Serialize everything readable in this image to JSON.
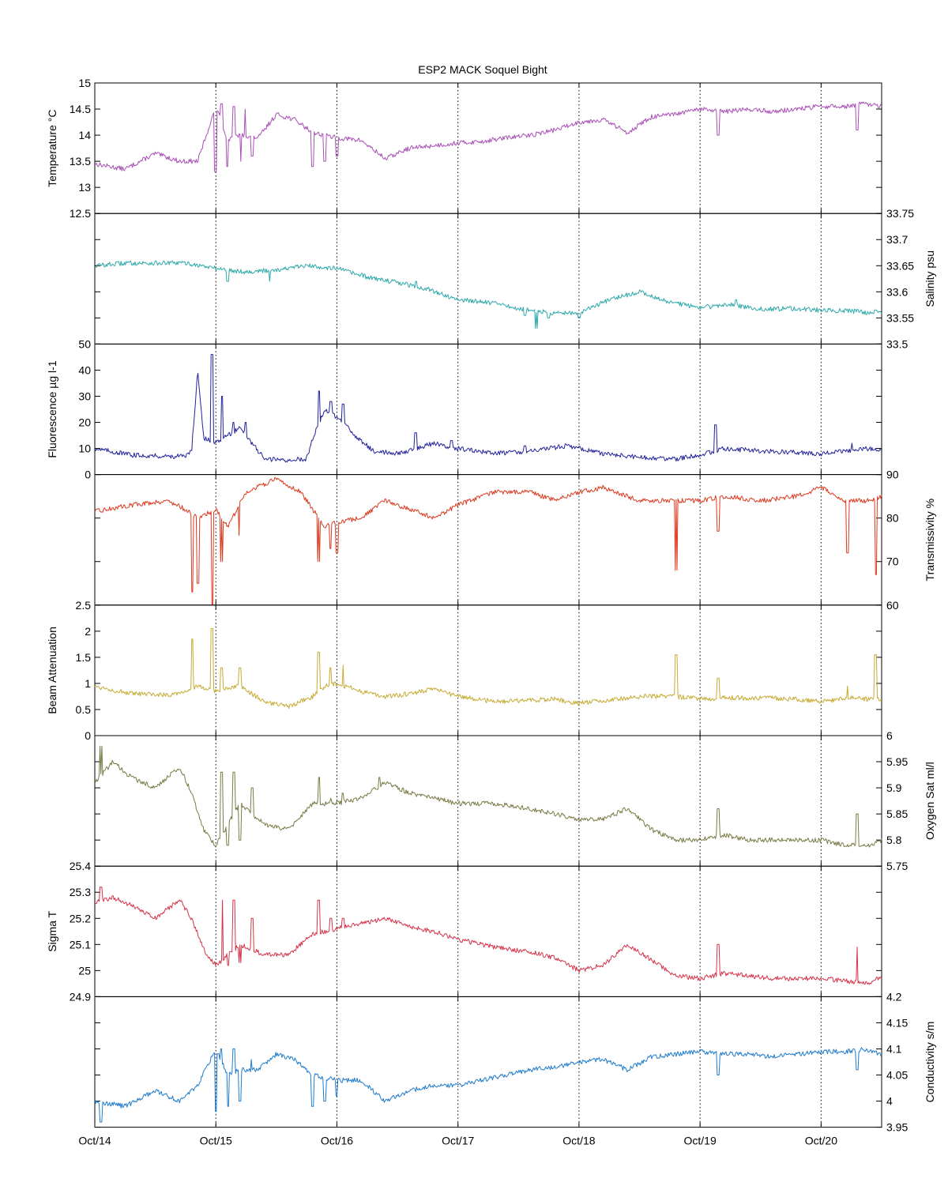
{
  "chart_data": {
    "type": "line",
    "title": "ESP2 MACK  Soquel Bight",
    "x_tick_labels": [
      "Oct/14",
      "Oct/15",
      "Oct/16",
      "Oct/17",
      "Oct/18",
      "Oct/19",
      "Oct/20"
    ],
    "x_range_days": [
      0,
      6.5
    ],
    "x_grid": "vertical dotted lines at day ticks",
    "panels": [
      {
        "ylabel": "Temperature °C",
        "axis_side": "left",
        "color": "#a94fb6",
        "ylim": [
          12.5,
          15
        ],
        "yticks": [
          "12.5",
          "13",
          "13.5",
          "14",
          "14.5",
          "15"
        ],
        "series": {
          "name": "",
          "x": [
            0,
            0.25,
            0.5,
            0.7,
            0.85,
            1.0,
            1.1,
            1.2,
            1.35,
            1.5,
            1.65,
            1.8,
            2.0,
            2.2,
            2.4,
            2.6,
            2.8,
            3.0,
            3.2,
            3.4,
            3.6,
            3.8,
            4.0,
            4.2,
            4.4,
            4.6,
            4.8,
            5.0,
            5.2,
            5.4,
            5.6,
            5.8,
            6.0,
            6.2,
            6.35,
            6.5
          ],
          "y": [
            13.45,
            13.35,
            13.65,
            13.5,
            13.5,
            14.55,
            13.9,
            14.0,
            13.95,
            14.4,
            14.3,
            14.05,
            13.95,
            13.9,
            13.55,
            13.75,
            13.8,
            13.85,
            13.88,
            13.95,
            14.0,
            14.1,
            14.25,
            14.3,
            14.05,
            14.35,
            14.4,
            14.5,
            14.45,
            14.5,
            14.45,
            14.5,
            14.55,
            14.55,
            14.6,
            14.55
          ],
          "spikes": [
            [
              1.0,
              13.3
            ],
            [
              1.05,
              14.6
            ],
            [
              1.1,
              13.4
            ],
            [
              1.15,
              14.55
            ],
            [
              1.2,
              13.5
            ],
            [
              1.25,
              14.5
            ],
            [
              1.3,
              13.6
            ],
            [
              1.8,
              13.4
            ],
            [
              1.9,
              13.5
            ],
            [
              2.0,
              13.6
            ],
            [
              5.15,
              14.0
            ],
            [
              6.3,
              14.1
            ]
          ]
        }
      },
      {
        "ylabel": "Salinity psu",
        "axis_side": "right",
        "color": "#2ea9a9",
        "ylim": [
          33.5,
          33.75
        ],
        "yticks": [
          "33.5",
          "33.55",
          "33.6",
          "33.65",
          "33.7",
          "33.75"
        ],
        "series": {
          "name": "",
          "x": [
            0,
            0.25,
            0.5,
            0.75,
            1.0,
            1.25,
            1.5,
            1.75,
            2.0,
            2.25,
            2.5,
            2.75,
            3.0,
            3.25,
            3.5,
            3.75,
            4.0,
            4.25,
            4.5,
            4.75,
            5.0,
            5.25,
            5.5,
            5.75,
            6.0,
            6.25,
            6.5
          ],
          "y": [
            33.65,
            33.655,
            33.655,
            33.655,
            33.645,
            33.638,
            33.642,
            33.65,
            33.645,
            33.628,
            33.618,
            33.605,
            33.585,
            33.58,
            33.568,
            33.56,
            33.56,
            33.585,
            33.6,
            33.58,
            33.57,
            33.575,
            33.567,
            33.568,
            33.565,
            33.563,
            33.558
          ],
          "spikes": [
            [
              1.1,
              33.62
            ],
            [
              1.45,
              33.62
            ],
            [
              2.65,
              33.62
            ],
            [
              3.55,
              33.555
            ],
            [
              3.65,
              33.53
            ],
            [
              3.75,
              33.55
            ],
            [
              3.85,
              33.56
            ],
            [
              4.0,
              33.55
            ],
            [
              5.3,
              33.585
            ],
            [
              6.45,
              33.565
            ]
          ]
        }
      },
      {
        "ylabel": "Fluorescence µg l-1",
        "axis_side": "left",
        "color": "#22239c",
        "ylim": [
          0,
          50
        ],
        "yticks": [
          "0",
          "10",
          "20",
          "30",
          "40",
          "50"
        ],
        "series": {
          "name": "",
          "x": [
            0,
            0.3,
            0.6,
            0.75,
            0.8,
            0.85,
            0.9,
            1.0,
            1.2,
            1.4,
            1.6,
            1.75,
            1.8,
            1.9,
            2.0,
            2.15,
            2.3,
            2.5,
            2.8,
            3.0,
            3.3,
            3.6,
            3.9,
            4.2,
            4.5,
            4.8,
            5.0,
            5.2,
            5.5,
            5.8,
            6.0,
            6.2,
            6.4,
            6.5
          ],
          "y": [
            10,
            7.5,
            7,
            7,
            9,
            40,
            14,
            12,
            18,
            6,
            5.5,
            6,
            14,
            25,
            22,
            15,
            9,
            8,
            12,
            10,
            8,
            9,
            11,
            8,
            6.5,
            6,
            7.5,
            10,
            9,
            8.5,
            8,
            9,
            10,
            9
          ],
          "spikes": [
            [
              0.8,
              40
            ],
            [
              0.97,
              46
            ],
            [
              1.05,
              30
            ],
            [
              1.15,
              20
            ],
            [
              1.25,
              20
            ],
            [
              1.85,
              32
            ],
            [
              1.95,
              28
            ],
            [
              2.05,
              27
            ],
            [
              2.65,
              16
            ],
            [
              2.95,
              13
            ],
            [
              3.55,
              11
            ],
            [
              5.13,
              19
            ],
            [
              6.25,
              12
            ]
          ]
        }
      },
      {
        "ylabel": "Transmissivity %",
        "axis_side": "right",
        "color": "#dc3a20",
        "ylim": [
          60,
          90
        ],
        "yticks": [
          "60",
          "70",
          "80",
          "90"
        ],
        "series": {
          "name": "",
          "x": [
            0,
            0.3,
            0.6,
            0.75,
            0.85,
            1.0,
            1.1,
            1.25,
            1.5,
            1.7,
            1.8,
            1.9,
            2.0,
            2.2,
            2.4,
            2.6,
            2.8,
            3.0,
            3.3,
            3.6,
            3.8,
            4.0,
            4.2,
            4.5,
            4.8,
            5.0,
            5.2,
            5.5,
            5.8,
            6.0,
            6.2,
            6.4,
            6.5
          ],
          "y": [
            81.5,
            83,
            84,
            82,
            80,
            82,
            78,
            86,
            89,
            86,
            82,
            78,
            79,
            80,
            84,
            82,
            80,
            83,
            86,
            86,
            84,
            86,
            87,
            84,
            84,
            84,
            85,
            84,
            85,
            87,
            84,
            84,
            85
          ],
          "spikes": [
            [
              0.8,
              63
            ],
            [
              0.85,
              65
            ],
            [
              0.97,
              60
            ],
            [
              1.05,
              70
            ],
            [
              1.2,
              76
            ],
            [
              1.85,
              70
            ],
            [
              1.95,
              73
            ],
            [
              2.0,
              72
            ],
            [
              4.8,
              68
            ],
            [
              5.15,
              77
            ],
            [
              6.22,
              72
            ],
            [
              6.45,
              67
            ]
          ]
        }
      },
      {
        "ylabel": "Beam Attenuation",
        "axis_side": "left",
        "color": "#c6ab33",
        "ylim": [
          0,
          2.5
        ],
        "yticks": [
          "0",
          "0.5",
          "1",
          "1.5",
          "2",
          "2.5"
        ],
        "series": {
          "name": "",
          "x": [
            0,
            0.3,
            0.6,
            0.75,
            0.85,
            1.0,
            1.2,
            1.4,
            1.6,
            1.8,
            1.9,
            2.0,
            2.2,
            2.4,
            2.6,
            2.8,
            3.0,
            3.3,
            3.6,
            3.8,
            4.0,
            4.2,
            4.5,
            4.8,
            5.0,
            5.2,
            5.5,
            5.8,
            6.0,
            6.2,
            6.4,
            6.5
          ],
          "y": [
            0.95,
            0.8,
            0.78,
            0.85,
            0.95,
            0.85,
            0.95,
            0.65,
            0.55,
            0.75,
            0.95,
            1.0,
            0.85,
            0.75,
            0.8,
            0.9,
            0.75,
            0.65,
            0.68,
            0.7,
            0.62,
            0.67,
            0.75,
            0.75,
            0.7,
            0.72,
            0.72,
            0.7,
            0.65,
            0.72,
            0.7,
            0.7
          ],
          "spikes": [
            [
              0.8,
              1.85
            ],
            [
              0.97,
              2.05
            ],
            [
              1.05,
              1.3
            ],
            [
              1.2,
              1.3
            ],
            [
              1.85,
              1.6
            ],
            [
              1.95,
              1.3
            ],
            [
              2.05,
              1.35
            ],
            [
              4.8,
              1.55
            ],
            [
              5.15,
              1.1
            ],
            [
              6.22,
              0.95
            ],
            [
              6.45,
              1.55
            ]
          ]
        }
      },
      {
        "ylabel": "Oxygen Sat ml/l",
        "axis_side": "right",
        "color": "#7a7a46",
        "ylim": [
          5.75,
          6.0
        ],
        "yticks": [
          "5.75",
          "5.8",
          "5.85",
          "5.9",
          "5.95",
          "6"
        ],
        "series": {
          "name": "",
          "x": [
            0,
            0.15,
            0.3,
            0.5,
            0.7,
            0.8,
            0.9,
            1.0,
            1.2,
            1.4,
            1.6,
            1.8,
            2.0,
            2.2,
            2.4,
            2.6,
            2.8,
            3.0,
            3.3,
            3.6,
            3.8,
            4.0,
            4.2,
            4.4,
            4.6,
            4.8,
            5.0,
            5.2,
            5.4,
            5.6,
            5.8,
            6.0,
            6.2,
            6.4,
            6.5
          ],
          "y": [
            5.91,
            5.95,
            5.92,
            5.9,
            5.94,
            5.89,
            5.82,
            5.79,
            5.87,
            5.83,
            5.82,
            5.87,
            5.87,
            5.88,
            5.91,
            5.89,
            5.88,
            5.87,
            5.87,
            5.86,
            5.85,
            5.84,
            5.84,
            5.86,
            5.82,
            5.8,
            5.8,
            5.81,
            5.8,
            5.8,
            5.8,
            5.8,
            5.79,
            5.79,
            5.8
          ],
          "spikes": [
            [
              0.05,
              5.98
            ],
            [
              1.0,
              5.79
            ],
            [
              1.05,
              5.93
            ],
            [
              1.1,
              5.79
            ],
            [
              1.15,
              5.93
            ],
            [
              1.2,
              5.8
            ],
            [
              1.3,
              5.9
            ],
            [
              1.85,
              5.92
            ],
            [
              1.95,
              5.88
            ],
            [
              2.05,
              5.89
            ],
            [
              2.35,
              5.92
            ],
            [
              5.15,
              5.86
            ],
            [
              6.3,
              5.85
            ]
          ]
        }
      },
      {
        "ylabel": "Sigma T",
        "axis_side": "left",
        "color": "#d6334a",
        "ylim": [
          24.9,
          25.4
        ],
        "yticks": [
          "24.9",
          "25",
          "25.1",
          "25.2",
          "25.3",
          "25.4"
        ],
        "series": {
          "name": "",
          "x": [
            0,
            0.15,
            0.3,
            0.5,
            0.7,
            0.8,
            0.9,
            1.0,
            1.2,
            1.4,
            1.6,
            1.8,
            2.0,
            2.2,
            2.4,
            2.6,
            2.8,
            3.0,
            3.3,
            3.6,
            3.8,
            4.0,
            4.2,
            4.4,
            4.6,
            4.8,
            5.0,
            5.2,
            5.4,
            5.6,
            5.8,
            6.0,
            6.2,
            6.4,
            6.5
          ],
          "y": [
            25.26,
            25.28,
            25.25,
            25.2,
            25.27,
            25.2,
            25.08,
            25.02,
            25.1,
            25.06,
            25.06,
            25.14,
            25.16,
            25.18,
            25.2,
            25.17,
            25.15,
            25.12,
            25.09,
            25.07,
            25.05,
            25.0,
            25.02,
            25.1,
            25.04,
            24.98,
            24.97,
            24.99,
            24.98,
            24.97,
            24.97,
            24.97,
            24.96,
            24.95,
            24.98
          ],
          "spikes": [
            [
              0.05,
              25.32
            ],
            [
              1.0,
              25.02
            ],
            [
              1.05,
              25.27
            ],
            [
              1.1,
              25.02
            ],
            [
              1.15,
              25.27
            ],
            [
              1.2,
              25.03
            ],
            [
              1.3,
              25.2
            ],
            [
              1.85,
              25.27
            ],
            [
              1.95,
              25.2
            ],
            [
              2.05,
              25.2
            ],
            [
              5.15,
              25.1
            ],
            [
              6.3,
              25.09
            ]
          ]
        }
      },
      {
        "ylabel": "Conductivity s/m",
        "axis_side": "right",
        "color": "#1f7bcc",
        "ylim": [
          3.95,
          4.2
        ],
        "yticks": [
          "3.95",
          "4",
          "4.05",
          "4.1",
          "4.15",
          "4.2"
        ],
        "series": {
          "name": "",
          "x": [
            0,
            0.25,
            0.5,
            0.7,
            0.85,
            1.0,
            1.1,
            1.2,
            1.35,
            1.5,
            1.65,
            1.8,
            2.0,
            2.2,
            2.4,
            2.6,
            2.8,
            3.0,
            3.2,
            3.4,
            3.6,
            3.8,
            4.0,
            4.2,
            4.4,
            4.6,
            4.8,
            5.0,
            5.2,
            5.4,
            5.6,
            5.8,
            6.0,
            6.2,
            6.35,
            6.5
          ],
          "y": [
            4.0,
            3.99,
            4.02,
            4.0,
            4.03,
            4.1,
            4.05,
            4.06,
            4.06,
            4.09,
            4.08,
            4.05,
            4.04,
            4.04,
            4.0,
            4.02,
            4.03,
            4.03,
            4.04,
            4.05,
            4.06,
            4.065,
            4.075,
            4.08,
            4.06,
            4.085,
            4.09,
            4.095,
            4.09,
            4.09,
            4.085,
            4.09,
            4.095,
            4.095,
            4.1,
            4.09
          ],
          "spikes": [
            [
              0.05,
              3.96
            ],
            [
              1.0,
              3.98
            ],
            [
              1.05,
              4.1
            ],
            [
              1.1,
              3.99
            ],
            [
              1.15,
              4.1
            ],
            [
              1.2,
              4.0
            ],
            [
              1.3,
              4.08
            ],
            [
              1.8,
              3.99
            ],
            [
              1.9,
              4.0
            ],
            [
              2.0,
              4.01
            ],
            [
              5.15,
              4.05
            ],
            [
              6.3,
              4.06
            ]
          ]
        }
      }
    ]
  }
}
